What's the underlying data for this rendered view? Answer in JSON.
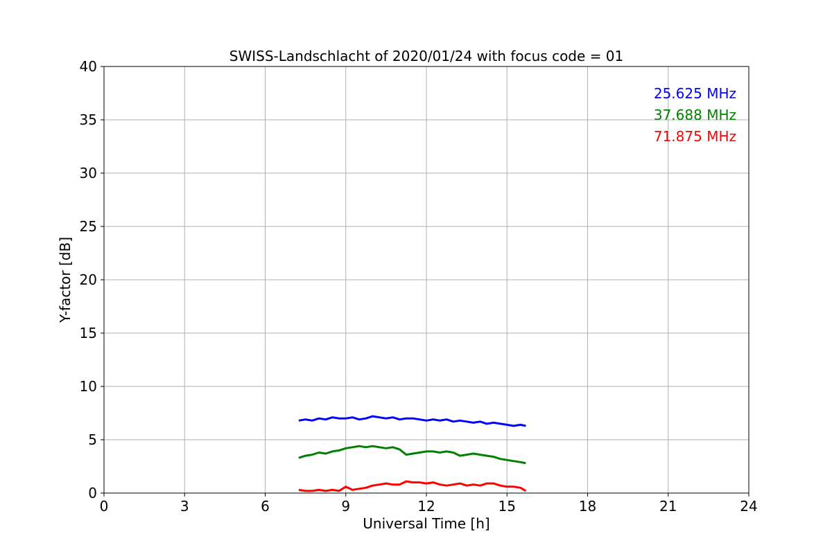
{
  "chart_data": {
    "type": "line",
    "title": "SWISS-Landschlacht of 2020/01/24 with focus code = 01",
    "xlabel": "Universal Time [h]",
    "ylabel": "Y-factor [dB]",
    "xlim": [
      0,
      24
    ],
    "ylim": [
      0,
      40
    ],
    "xticks": [
      0,
      3,
      6,
      9,
      12,
      15,
      18,
      21,
      24
    ],
    "yticks": [
      0,
      5,
      10,
      15,
      20,
      25,
      30,
      35,
      40
    ],
    "grid": true,
    "legend_position": "top-right",
    "series": [
      {
        "name": "25.625 MHz",
        "color": "#0000ff",
        "x": [
          7.25,
          7.5,
          7.75,
          8.0,
          8.25,
          8.5,
          8.75,
          9.0,
          9.25,
          9.5,
          9.75,
          10.0,
          10.25,
          10.5,
          10.75,
          11.0,
          11.25,
          11.5,
          11.75,
          12.0,
          12.25,
          12.5,
          12.75,
          13.0,
          13.25,
          13.5,
          13.75,
          14.0,
          14.25,
          14.5,
          14.75,
          15.0,
          15.25,
          15.5,
          15.7
        ],
        "y": [
          6.8,
          6.9,
          6.8,
          7.0,
          6.9,
          7.1,
          7.0,
          7.0,
          7.1,
          6.9,
          7.0,
          7.2,
          7.1,
          7.0,
          7.1,
          6.9,
          7.0,
          7.0,
          6.9,
          6.8,
          6.9,
          6.8,
          6.9,
          6.7,
          6.8,
          6.7,
          6.6,
          6.7,
          6.5,
          6.6,
          6.5,
          6.4,
          6.3,
          6.4,
          6.3
        ]
      },
      {
        "name": "37.688 MHz",
        "color": "#008000",
        "x": [
          7.25,
          7.5,
          7.75,
          8.0,
          8.25,
          8.5,
          8.75,
          9.0,
          9.25,
          9.5,
          9.75,
          10.0,
          10.25,
          10.5,
          10.75,
          11.0,
          11.25,
          11.5,
          11.75,
          12.0,
          12.25,
          12.5,
          12.75,
          13.0,
          13.25,
          13.5,
          13.75,
          14.0,
          14.25,
          14.5,
          14.75,
          15.0,
          15.25,
          15.5,
          15.7
        ],
        "y": [
          3.3,
          3.5,
          3.6,
          3.8,
          3.7,
          3.9,
          4.0,
          4.2,
          4.3,
          4.4,
          4.3,
          4.4,
          4.3,
          4.2,
          4.3,
          4.1,
          3.6,
          3.7,
          3.8,
          3.9,
          3.9,
          3.8,
          3.9,
          3.8,
          3.5,
          3.6,
          3.7,
          3.6,
          3.5,
          3.4,
          3.2,
          3.1,
          3.0,
          2.9,
          2.8
        ]
      },
      {
        "name": "71.875 MHz",
        "color": "#ff0000",
        "x": [
          7.25,
          7.5,
          7.75,
          8.0,
          8.25,
          8.5,
          8.75,
          9.0,
          9.25,
          9.5,
          9.75,
          10.0,
          10.25,
          10.5,
          10.75,
          11.0,
          11.25,
          11.5,
          11.75,
          12.0,
          12.25,
          12.5,
          12.75,
          13.0,
          13.25,
          13.5,
          13.75,
          14.0,
          14.25,
          14.5,
          14.75,
          15.0,
          15.25,
          15.5,
          15.7
        ],
        "y": [
          0.3,
          0.2,
          0.2,
          0.3,
          0.2,
          0.3,
          0.2,
          0.6,
          0.3,
          0.4,
          0.5,
          0.7,
          0.8,
          0.9,
          0.8,
          0.8,
          1.1,
          1.0,
          1.0,
          0.9,
          1.0,
          0.8,
          0.7,
          0.8,
          0.9,
          0.7,
          0.8,
          0.7,
          0.9,
          0.9,
          0.7,
          0.6,
          0.6,
          0.5,
          0.2
        ]
      }
    ]
  }
}
